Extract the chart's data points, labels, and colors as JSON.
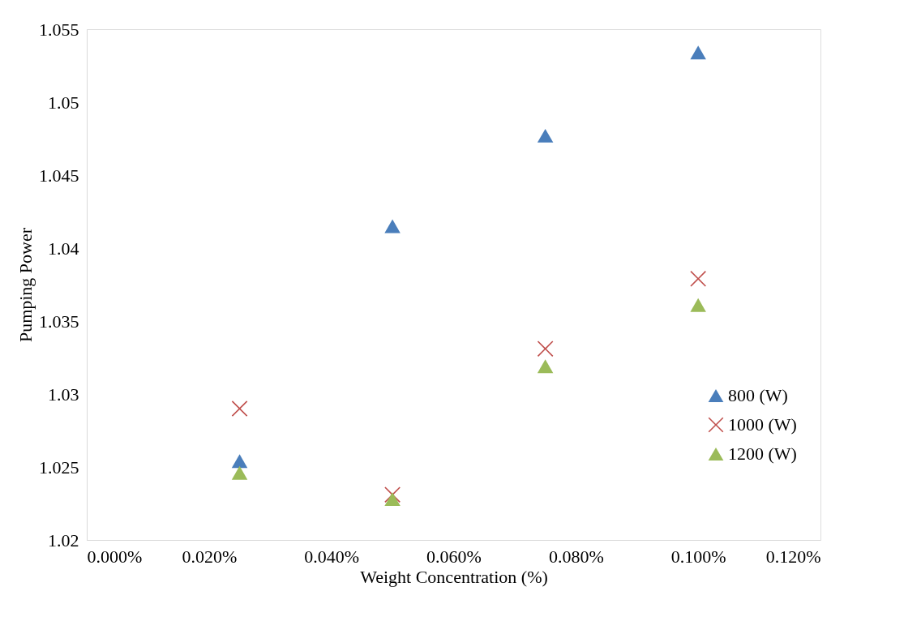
{
  "chart_data": {
    "type": "scatter",
    "xlabel": "Weight Concentration (%)",
    "ylabel": "Pumping Power",
    "x": [
      0.025,
      0.05,
      0.075,
      0.1
    ],
    "series": [
      {
        "name": "800 (W)",
        "color": "#4a7ebb",
        "marker": "triangle",
        "values": [
          1.0254,
          1.0415,
          1.0477,
          1.0534
        ]
      },
      {
        "name": "1000 (W)",
        "color": "#c0504d",
        "marker": "cross",
        "values": [
          1.029,
          1.0231,
          1.0331,
          1.0379
        ]
      },
      {
        "name": "1200 (W)",
        "color": "#9bbb59",
        "marker": "triangle",
        "values": [
          1.0246,
          1.0228,
          1.0319,
          1.0361
        ]
      }
    ],
    "xlim": [
      0,
      0.12
    ],
    "xticks": [
      {
        "value": 0,
        "label": "0.000%"
      },
      {
        "value": 0.02,
        "label": "0.020%"
      },
      {
        "value": 0.04,
        "label": "0.040%"
      },
      {
        "value": 0.06,
        "label": "0.060%"
      },
      {
        "value": 0.08,
        "label": "0.080%"
      },
      {
        "value": 0.1,
        "label": "0.100%"
      },
      {
        "value": 0.12,
        "label": "0.120%"
      }
    ],
    "ylim": [
      1.02,
      1.055
    ],
    "yticks": [
      1.02,
      1.025,
      1.03,
      1.035,
      1.04,
      1.045,
      1.05,
      1.055
    ],
    "grid": false,
    "legend": "right"
  }
}
